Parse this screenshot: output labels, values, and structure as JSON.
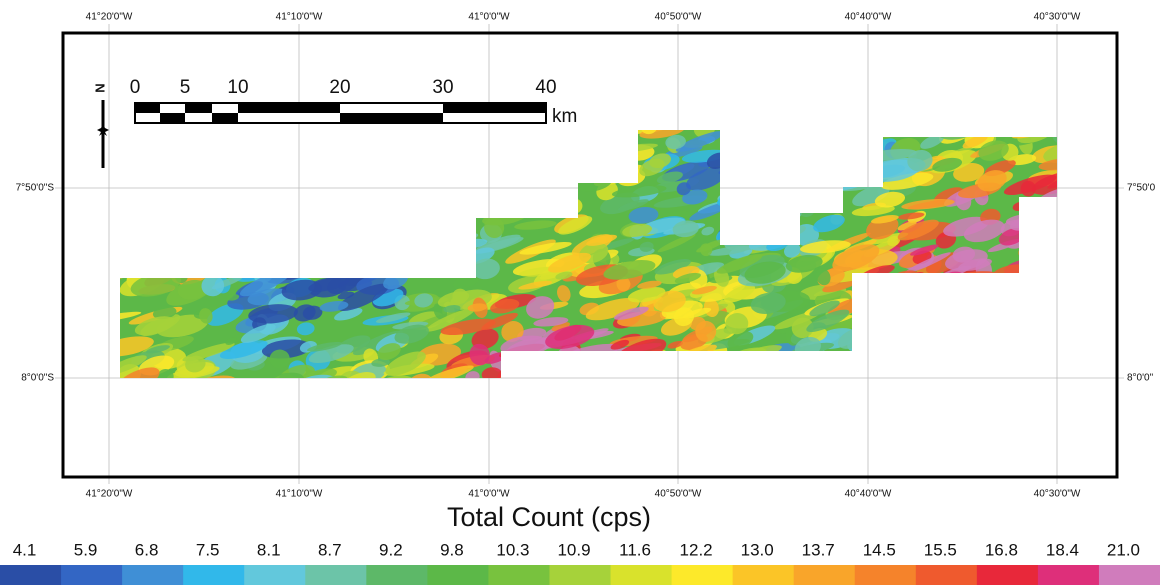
{
  "map": {
    "lon_labels_top": [
      "41°20'0\"W",
      "41°10'0\"W",
      "41°0'0\"W",
      "40°50'0\"W",
      "40°40'0\"W",
      "40°30'0\"W"
    ],
    "lon_labels_bottom": [
      "41°20'0\"W",
      "41°10'0\"W",
      "41°0'0\"W",
      "40°50'0\"W",
      "40°40'0\"W",
      "40°30'0\"W"
    ],
    "lat_labels_left": [
      "7°50'0\"S",
      "8°0'0\"S"
    ],
    "lat_labels_right": [
      "7°50'0",
      "8°0'0\""
    ]
  },
  "north": "N",
  "scale_bar": {
    "ticks": [
      "0",
      "5",
      "10",
      "20",
      "30",
      "40"
    ],
    "unit": "km"
  },
  "legend": {
    "title": "Total Count (cps)",
    "labels": [
      "4.1",
      "5.9",
      "6.8",
      "7.5",
      "8.1",
      "8.7",
      "9.2",
      "9.8",
      "10.3",
      "10.9",
      "11.6",
      "12.2",
      "13.0",
      "13.7",
      "14.5",
      "15.5",
      "16.8",
      "18.4",
      "21.0"
    ],
    "colors": [
      "#2a4ea6",
      "#3366c4",
      "#3f8fd6",
      "#31b8ea",
      "#62c8dc",
      "#6cc4a8",
      "#5db868",
      "#5cb848",
      "#78c23e",
      "#a6d23a",
      "#d9e22c",
      "#fde92a",
      "#fbc527",
      "#f9a52a",
      "#f5832b",
      "#ef5a2e",
      "#e8283a",
      "#de2f7a",
      "#d07cbc"
    ]
  }
}
